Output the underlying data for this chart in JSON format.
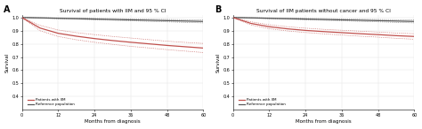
{
  "title_A": "Survival of patients with IIM and 95 % CI",
  "title_B": "Survival of IIM patients without cancer and 95 % CI",
  "label_A": "A",
  "label_B": "B",
  "xlabel": "Months from diagnosis",
  "ylabel": "Survival",
  "xlim": [
    0,
    60
  ],
  "ylim": [
    0.3,
    1.02
  ],
  "xticks": [
    0,
    12,
    24,
    36,
    48,
    60
  ],
  "yticks": [
    0.4,
    0.5,
    0.6,
    0.7,
    0.8,
    0.9,
    1.0
  ],
  "legend_iim": "Patients with IIM",
  "legend_ref": "Reference population",
  "iim_color": "#c0504d",
  "ref_color": "#595959",
  "background": "#ffffff",
  "panel_A": {
    "ref_x": [
      0,
      6,
      12,
      18,
      24,
      30,
      36,
      42,
      48,
      54,
      60
    ],
    "ref_y": [
      1.0,
      0.997,
      0.994,
      0.991,
      0.988,
      0.985,
      0.982,
      0.979,
      0.976,
      0.973,
      0.97
    ],
    "ref_ci_upper": [
      1.0,
      0.999,
      0.997,
      0.995,
      0.993,
      0.991,
      0.989,
      0.987,
      0.985,
      0.983,
      0.981
    ],
    "ref_ci_lower": [
      1.0,
      0.995,
      0.991,
      0.987,
      0.983,
      0.979,
      0.975,
      0.971,
      0.967,
      0.963,
      0.959
    ],
    "iim_x": [
      0,
      6,
      12,
      18,
      24,
      30,
      36,
      42,
      48,
      54,
      60
    ],
    "iim_y": [
      1.0,
      0.92,
      0.88,
      0.858,
      0.84,
      0.825,
      0.812,
      0.8,
      0.788,
      0.778,
      0.768
    ],
    "iim_ci_upper": [
      1.0,
      0.94,
      0.905,
      0.885,
      0.87,
      0.856,
      0.844,
      0.832,
      0.82,
      0.811,
      0.803
    ],
    "iim_ci_lower": [
      1.0,
      0.9,
      0.856,
      0.831,
      0.812,
      0.796,
      0.781,
      0.769,
      0.756,
      0.745,
      0.734
    ]
  },
  "panel_B": {
    "ref_x": [
      0,
      6,
      12,
      18,
      24,
      30,
      36,
      42,
      48,
      54,
      60
    ],
    "ref_y": [
      1.0,
      0.997,
      0.994,
      0.991,
      0.988,
      0.985,
      0.982,
      0.979,
      0.976,
      0.973,
      0.97
    ],
    "ref_ci_upper": [
      1.0,
      0.999,
      0.997,
      0.995,
      0.993,
      0.991,
      0.989,
      0.987,
      0.985,
      0.983,
      0.981
    ],
    "ref_ci_lower": [
      1.0,
      0.995,
      0.991,
      0.987,
      0.983,
      0.979,
      0.975,
      0.971,
      0.967,
      0.963,
      0.959
    ],
    "iim_x": [
      0,
      6,
      12,
      18,
      24,
      30,
      36,
      42,
      48,
      54,
      60
    ],
    "iim_y": [
      1.0,
      0.955,
      0.93,
      0.914,
      0.902,
      0.893,
      0.885,
      0.877,
      0.87,
      0.862,
      0.856
    ],
    "iim_ci_upper": [
      1.0,
      0.967,
      0.945,
      0.93,
      0.919,
      0.91,
      0.903,
      0.896,
      0.889,
      0.882,
      0.877
    ],
    "iim_ci_lower": [
      1.0,
      0.943,
      0.915,
      0.898,
      0.886,
      0.876,
      0.867,
      0.858,
      0.851,
      0.842,
      0.835
    ]
  }
}
